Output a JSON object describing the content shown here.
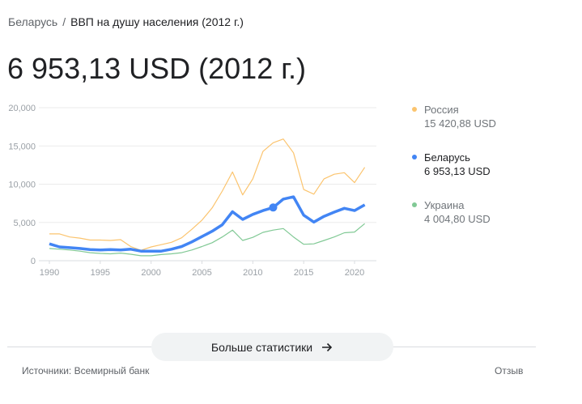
{
  "breadcrumb": {
    "country": "Беларусь",
    "separator": "/",
    "topic": "ВВП на душу населения (2012 г.)"
  },
  "headline": "6 953,13 USD (2012 г.)",
  "legend": [
    {
      "name": "Россия",
      "value": "15 420,88 USD",
      "color": "#fbc46e"
    },
    {
      "name": "Беларусь",
      "value": "6 953,13 USD",
      "color": "#4285f4"
    },
    {
      "name": "Украина",
      "value": "4 004,80 USD",
      "color": "#81c995"
    }
  ],
  "more_button": {
    "label": "Больше статистики",
    "icon": "arrow-right-icon"
  },
  "footer": {
    "sources": "Источники: Всемирный банк",
    "feedback": "Отзыв"
  },
  "chart_data": {
    "type": "line",
    "ylim": [
      0,
      20000
    ],
    "yticks": [
      "0",
      "5,000",
      "10,000",
      "15,000",
      "20,000"
    ],
    "yticks_values": [
      0,
      5000,
      10000,
      15000,
      20000
    ],
    "xticks": [
      "1990",
      "1995",
      "2000",
      "2005",
      "2010",
      "2015",
      "2020"
    ],
    "grid": true,
    "legend_position": "right",
    "highlight": {
      "series": "Беларусь",
      "x": 2012,
      "y": 6953.13
    },
    "x": [
      1990,
      1991,
      1992,
      1993,
      1994,
      1995,
      1996,
      1997,
      1998,
      1999,
      2000,
      2001,
      2002,
      2003,
      2004,
      2005,
      2006,
      2007,
      2008,
      2009,
      2010,
      2011,
      2012,
      2013,
      2014,
      2015,
      2016,
      2017,
      2018,
      2019,
      2020,
      2021
    ],
    "series": [
      {
        "name": "Россия",
        "color": "#fbc46e",
        "values": [
          3500,
          3500,
          3100,
          2950,
          2700,
          2700,
          2650,
          2750,
          1850,
          1350,
          1800,
          2100,
          2400,
          3000,
          4100,
          5300,
          6900,
          9100,
          11600,
          8600,
          10700,
          14300,
          15420.88,
          15900,
          14100,
          9300,
          8700,
          10700,
          11300,
          11500,
          10200,
          12200
        ]
      },
      {
        "name": "Беларусь",
        "color": "#4285f4",
        "values": [
          2200,
          1800,
          1700,
          1600,
          1450,
          1400,
          1450,
          1400,
          1500,
          1250,
          1250,
          1250,
          1500,
          1850,
          2450,
          3150,
          3850,
          4700,
          6400,
          5400,
          6050,
          6550,
          6953.13,
          8050,
          8350,
          5950,
          5050,
          5800,
          6350,
          6850,
          6550,
          7300
        ]
      },
      {
        "name": "Украина",
        "color": "#81c995",
        "values": [
          1600,
          1500,
          1400,
          1250,
          1050,
          950,
          900,
          1000,
          850,
          650,
          650,
          800,
          900,
          1050,
          1400,
          1850,
          2350,
          3100,
          4000,
          2650,
          3050,
          3700,
          4004.8,
          4200,
          3100,
          2150,
          2200,
          2650,
          3100,
          3650,
          3750,
          4850
        ]
      }
    ]
  }
}
